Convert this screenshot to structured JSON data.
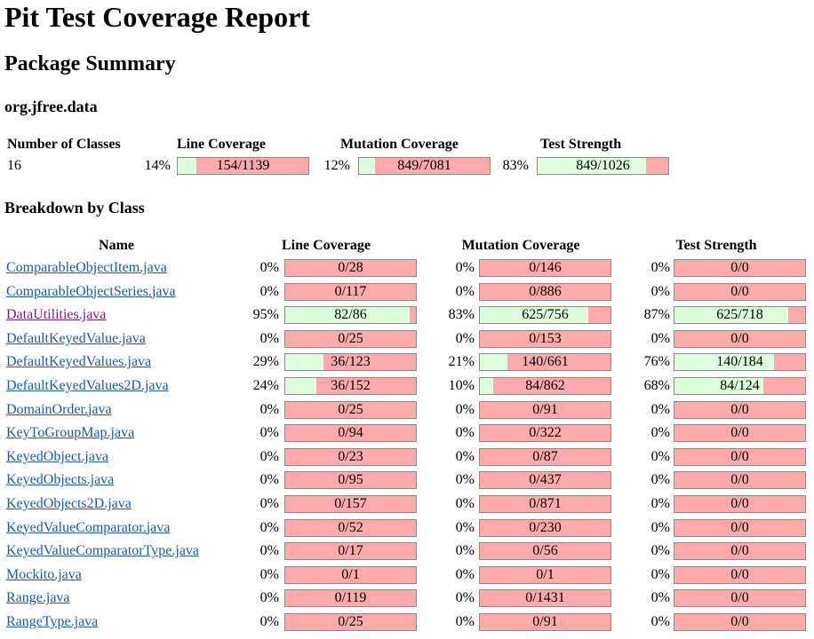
{
  "title": "Pit Test Coverage Report",
  "subtitle": "Package Summary",
  "package": "org.jfree.data",
  "summary": {
    "headers": {
      "classes": "Number of Classes",
      "line": "Line Coverage",
      "mutation": "Mutation Coverage",
      "strength": "Test Strength"
    },
    "classes": "16",
    "line": {
      "pct": "14%",
      "ratio": "154/1139",
      "fraction": 0.14
    },
    "mutation": {
      "pct": "12%",
      "ratio": "849/7081",
      "fraction": 0.12
    },
    "strength": {
      "pct": "83%",
      "ratio": "849/1026",
      "fraction": 0.83
    }
  },
  "breakdown_heading": "Breakdown by Class",
  "breakdown_headers": {
    "name": "Name",
    "line": "Line Coverage",
    "mutation": "Mutation Coverage",
    "strength": "Test Strength"
  },
  "classes": [
    {
      "name": "ComparableObjectItem.java",
      "visited": false,
      "line": {
        "pct": "0%",
        "ratio": "0/28",
        "fraction": 0
      },
      "mutation": {
        "pct": "0%",
        "ratio": "0/146",
        "fraction": 0
      },
      "strength": {
        "pct": "0%",
        "ratio": "0/0",
        "fraction": 0
      }
    },
    {
      "name": "ComparableObjectSeries.java",
      "visited": false,
      "line": {
        "pct": "0%",
        "ratio": "0/117",
        "fraction": 0
      },
      "mutation": {
        "pct": "0%",
        "ratio": "0/886",
        "fraction": 0
      },
      "strength": {
        "pct": "0%",
        "ratio": "0/0",
        "fraction": 0
      }
    },
    {
      "name": "DataUtilities.java",
      "visited": true,
      "line": {
        "pct": "95%",
        "ratio": "82/86",
        "fraction": 0.95
      },
      "mutation": {
        "pct": "83%",
        "ratio": "625/756",
        "fraction": 0.83
      },
      "strength": {
        "pct": "87%",
        "ratio": "625/718",
        "fraction": 0.87
      }
    },
    {
      "name": "DefaultKeyedValue.java",
      "visited": false,
      "line": {
        "pct": "0%",
        "ratio": "0/25",
        "fraction": 0
      },
      "mutation": {
        "pct": "0%",
        "ratio": "0/153",
        "fraction": 0
      },
      "strength": {
        "pct": "0%",
        "ratio": "0/0",
        "fraction": 0
      }
    },
    {
      "name": "DefaultKeyedValues.java",
      "visited": false,
      "line": {
        "pct": "29%",
        "ratio": "36/123",
        "fraction": 0.29
      },
      "mutation": {
        "pct": "21%",
        "ratio": "140/661",
        "fraction": 0.21
      },
      "strength": {
        "pct": "76%",
        "ratio": "140/184",
        "fraction": 0.76
      }
    },
    {
      "name": "DefaultKeyedValues2D.java",
      "visited": false,
      "line": {
        "pct": "24%",
        "ratio": "36/152",
        "fraction": 0.24
      },
      "mutation": {
        "pct": "10%",
        "ratio": "84/862",
        "fraction": 0.1
      },
      "strength": {
        "pct": "68%",
        "ratio": "84/124",
        "fraction": 0.68
      }
    },
    {
      "name": "DomainOrder.java",
      "visited": false,
      "line": {
        "pct": "0%",
        "ratio": "0/25",
        "fraction": 0
      },
      "mutation": {
        "pct": "0%",
        "ratio": "0/91",
        "fraction": 0
      },
      "strength": {
        "pct": "0%",
        "ratio": "0/0",
        "fraction": 0
      }
    },
    {
      "name": "KeyToGroupMap.java",
      "visited": false,
      "line": {
        "pct": "0%",
        "ratio": "0/94",
        "fraction": 0
      },
      "mutation": {
        "pct": "0%",
        "ratio": "0/322",
        "fraction": 0
      },
      "strength": {
        "pct": "0%",
        "ratio": "0/0",
        "fraction": 0
      }
    },
    {
      "name": "KeyedObject.java",
      "visited": false,
      "line": {
        "pct": "0%",
        "ratio": "0/23",
        "fraction": 0
      },
      "mutation": {
        "pct": "0%",
        "ratio": "0/87",
        "fraction": 0
      },
      "strength": {
        "pct": "0%",
        "ratio": "0/0",
        "fraction": 0
      }
    },
    {
      "name": "KeyedObjects.java",
      "visited": false,
      "line": {
        "pct": "0%",
        "ratio": "0/95",
        "fraction": 0
      },
      "mutation": {
        "pct": "0%",
        "ratio": "0/437",
        "fraction": 0
      },
      "strength": {
        "pct": "0%",
        "ratio": "0/0",
        "fraction": 0
      }
    },
    {
      "name": "KeyedObjects2D.java",
      "visited": false,
      "line": {
        "pct": "0%",
        "ratio": "0/157",
        "fraction": 0
      },
      "mutation": {
        "pct": "0%",
        "ratio": "0/871",
        "fraction": 0
      },
      "strength": {
        "pct": "0%",
        "ratio": "0/0",
        "fraction": 0
      }
    },
    {
      "name": "KeyedValueComparator.java",
      "visited": false,
      "line": {
        "pct": "0%",
        "ratio": "0/52",
        "fraction": 0
      },
      "mutation": {
        "pct": "0%",
        "ratio": "0/230",
        "fraction": 0
      },
      "strength": {
        "pct": "0%",
        "ratio": "0/0",
        "fraction": 0
      }
    },
    {
      "name": "KeyedValueComparatorType.java",
      "visited": false,
      "line": {
        "pct": "0%",
        "ratio": "0/17",
        "fraction": 0
      },
      "mutation": {
        "pct": "0%",
        "ratio": "0/56",
        "fraction": 0
      },
      "strength": {
        "pct": "0%",
        "ratio": "0/0",
        "fraction": 0
      }
    },
    {
      "name": "Mockito.java",
      "visited": false,
      "line": {
        "pct": "0%",
        "ratio": "0/1",
        "fraction": 0
      },
      "mutation": {
        "pct": "0%",
        "ratio": "0/1",
        "fraction": 0
      },
      "strength": {
        "pct": "0%",
        "ratio": "0/0",
        "fraction": 0
      }
    },
    {
      "name": "Range.java",
      "visited": false,
      "line": {
        "pct": "0%",
        "ratio": "0/119",
        "fraction": 0
      },
      "mutation": {
        "pct": "0%",
        "ratio": "0/1431",
        "fraction": 0
      },
      "strength": {
        "pct": "0%",
        "ratio": "0/0",
        "fraction": 0
      }
    },
    {
      "name": "RangeType.java",
      "visited": false,
      "line": {
        "pct": "0%",
        "ratio": "0/25",
        "fraction": 0
      },
      "mutation": {
        "pct": "0%",
        "ratio": "0/91",
        "fraction": 0
      },
      "strength": {
        "pct": "0%",
        "ratio": "0/0",
        "fraction": 0
      }
    }
  ]
}
